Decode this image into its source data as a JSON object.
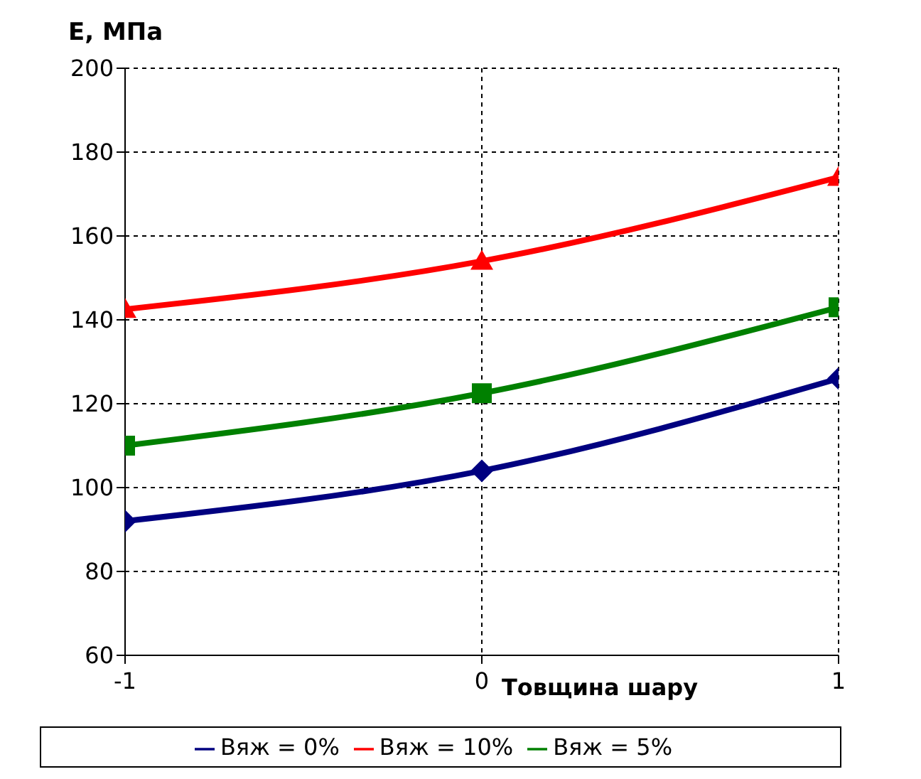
{
  "chart_data": {
    "type": "line",
    "xlabel": "Товщина шару",
    "ylabel": "E, МПа",
    "x": [
      -1,
      0,
      1
    ],
    "series": [
      {
        "name": "Вяж = 0%",
        "color": "#000080",
        "values": [
          92,
          104,
          126
        ],
        "marker": "diamond"
      },
      {
        "name": "Вяж = 5%",
        "color": "#008000",
        "values": [
          110,
          122.5,
          143
        ],
        "marker": "square"
      },
      {
        "name": "Вяж = 10%",
        "color": "#ff0000",
        "values": [
          142.5,
          154,
          174
        ],
        "marker": "triangle"
      }
    ],
    "xlim": [
      -1,
      1
    ],
    "xticks": [
      -1,
      0,
      1
    ],
    "ylim": [
      60,
      200
    ],
    "yticks": [
      60,
      80,
      100,
      120,
      140,
      160,
      180,
      200
    ],
    "grid": true,
    "legend": "bottom",
    "line_style": "solid"
  }
}
